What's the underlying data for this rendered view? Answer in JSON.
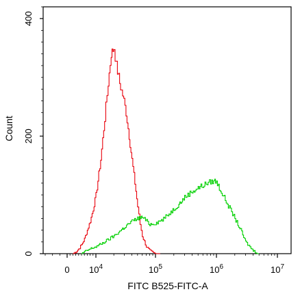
{
  "chart_data": {
    "type": "line",
    "title": "",
    "xlabel": "FITC B525-FITC-A",
    "ylabel": "Count",
    "x_scale": "biexponential",
    "xlim": [
      -3000,
      10000000
    ],
    "ylim": [
      0,
      420
    ],
    "x_ticks": [
      {
        "value": 0,
        "base": "0",
        "exp": ""
      },
      {
        "value": 10000,
        "base": "10",
        "exp": "4"
      },
      {
        "value": 100000,
        "base": "10",
        "exp": "5"
      },
      {
        "value": 1000000,
        "base": "10",
        "exp": "6"
      },
      {
        "value": 10000000,
        "base": "10",
        "exp": "7"
      }
    ],
    "y_ticks": [
      0,
      200,
      400
    ],
    "grid": false,
    "legend": "none",
    "series": [
      {
        "color": "#e8000b",
        "x": [
          2000,
          3000,
          4000,
          5000,
          6000,
          7000,
          8000,
          9000,
          10000,
          12000,
          14000,
          16000,
          18000,
          20000,
          22000,
          25000,
          28000,
          32000,
          36000,
          40000,
          45000,
          50000,
          55000,
          60000,
          70000,
          80000,
          90000,
          100000,
          120000
        ],
        "y": [
          0,
          3,
          8,
          15,
          25,
          40,
          55,
          75,
          100,
          160,
          230,
          290,
          340,
          350,
          320,
          290,
          270,
          240,
          200,
          160,
          120,
          80,
          50,
          30,
          12,
          5,
          2,
          0,
          0
        ]
      },
      {
        "color": "#00d000",
        "x": [
          5000,
          6000,
          8000,
          10000,
          12000,
          15000,
          20000,
          25000,
          30000,
          40000,
          50000,
          60000,
          80000,
          100000,
          130000,
          160000,
          200000,
          250000,
          300000,
          400000,
          500000,
          600000,
          700000,
          800000,
          900000,
          1000000,
          1200000,
          1500000,
          2000000,
          2500000,
          3000000,
          4000000,
          5000000
        ],
        "y": [
          0,
          3,
          8,
          12,
          16,
          22,
          30,
          38,
          45,
          55,
          60,
          62,
          50,
          52,
          58,
          66,
          76,
          86,
          96,
          106,
          112,
          116,
          120,
          122,
          124,
          122,
          105,
          85,
          60,
          40,
          20,
          5,
          0
        ]
      }
    ]
  }
}
